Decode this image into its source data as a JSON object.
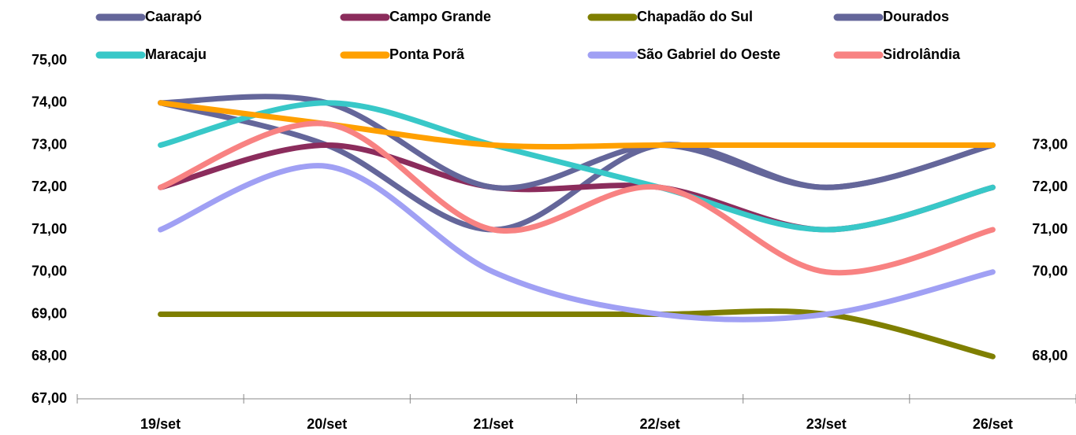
{
  "chart_data": {
    "type": "line",
    "smooth": true,
    "categories": [
      "19/set",
      "20/set",
      "21/set",
      "22/set",
      "23/set",
      "26/set"
    ],
    "series": [
      {
        "name": "Caarapó",
        "color": "#64669a",
        "values": [
          74,
          73,
          71,
          73,
          72,
          73
        ]
      },
      {
        "name": "Campo Grande",
        "color": "#8b2c5c",
        "values": [
          72,
          73,
          72,
          72,
          71,
          72
        ]
      },
      {
        "name": "Chapadão do Sul",
        "color": "#7f7f00",
        "values": [
          69,
          69,
          69,
          69,
          69,
          68
        ],
        "value_labels": [
          null,
          null,
          null,
          null,
          null,
          "68,00"
        ]
      },
      {
        "name": "Dourados",
        "color": "#64669a",
        "values": [
          74,
          74,
          72,
          73,
          72,
          73
        ],
        "value_labels": [
          null,
          null,
          null,
          null,
          null,
          "73,00"
        ]
      },
      {
        "name": "Maracaju",
        "color": "#38c8c8",
        "values": [
          73,
          74,
          73,
          72,
          71,
          72
        ],
        "value_labels": [
          null,
          null,
          null,
          null,
          null,
          "72,00"
        ]
      },
      {
        "name": "Ponta Porã",
        "color": "#ffa000",
        "values": [
          74,
          73.5,
          73,
          73,
          73,
          73
        ]
      },
      {
        "name": "São Gabriel do Oeste",
        "color": "#a0a0f4",
        "values": [
          71,
          72.5,
          70,
          69,
          69,
          70
        ],
        "value_labels": [
          null,
          null,
          null,
          null,
          null,
          "70,00"
        ]
      },
      {
        "name": "Sidrolândia",
        "color": "#f88282",
        "values": [
          72,
          73.5,
          71,
          72,
          70,
          71
        ],
        "value_labels": [
          null,
          null,
          null,
          null,
          null,
          "71,00"
        ]
      }
    ],
    "ylim": [
      67,
      75
    ],
    "yticks": [
      {
        "value": 67,
        "label": "67,00"
      },
      {
        "value": 68,
        "label": "68,00"
      },
      {
        "value": 69,
        "label": "69,00"
      },
      {
        "value": 70,
        "label": "70,00"
      },
      {
        "value": 71,
        "label": "71,00"
      },
      {
        "value": 72,
        "label": "72,00"
      },
      {
        "value": 73,
        "label": "73,00"
      },
      {
        "value": 74,
        "label": "74,00"
      },
      {
        "value": 75,
        "label": "75,00"
      }
    ],
    "grid": false,
    "legend": "top"
  }
}
